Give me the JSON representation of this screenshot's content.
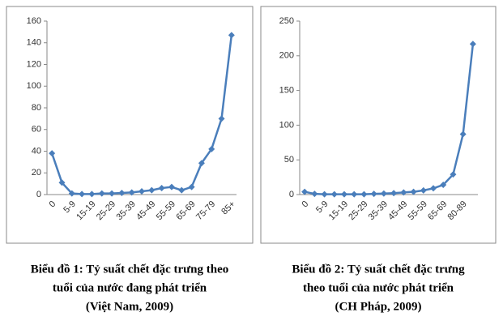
{
  "chart_data": [
    {
      "type": "line",
      "color": "#4a7ebb",
      "categories": [
        "0",
        null,
        "5-9",
        null,
        "15-19",
        null,
        "25-29",
        null,
        "35-39",
        null,
        "45-49",
        null,
        "55-59",
        null,
        "65-69",
        null,
        "75-79",
        null,
        "85+"
      ],
      "values": [
        38,
        11,
        1,
        0.5,
        0.5,
        1,
        1,
        1.5,
        2,
        3,
        4,
        6,
        7,
        4,
        7,
        29,
        42,
        70,
        147
      ],
      "ylim": [
        0,
        160
      ],
      "yticks": [
        0,
        20,
        40,
        60,
        80,
        100,
        120,
        140,
        160
      ],
      "caption": [
        "Biểu đồ    1: Tỷ suất chết đặc trưng theo",
        "tuổi của nước đang phát triển",
        "(Việt Nam, 2009)"
      ]
    },
    {
      "type": "line",
      "color": "#4a7ebb",
      "categories": [
        "0",
        null,
        "5-9",
        null,
        "15-19",
        null,
        "25-29",
        null,
        "35-39",
        null,
        "45-49",
        null,
        "55-59",
        null,
        "65-69",
        null,
        "80-89",
        null
      ],
      "values": [
        4,
        1,
        0.5,
        0.5,
        0.5,
        0.5,
        0.5,
        1,
        1.5,
        2,
        3,
        4,
        6,
        9,
        14,
        29,
        87,
        217
      ],
      "ylim": [
        0,
        250
      ],
      "yticks": [
        0,
        50,
        100,
        150,
        200,
        250
      ],
      "caption": [
        "Biểu đồ    2: Tỷ suất chết đặc trưng",
        "theo tuổi của nước phát triển",
        "(CH Pháp, 2009)"
      ]
    }
  ]
}
